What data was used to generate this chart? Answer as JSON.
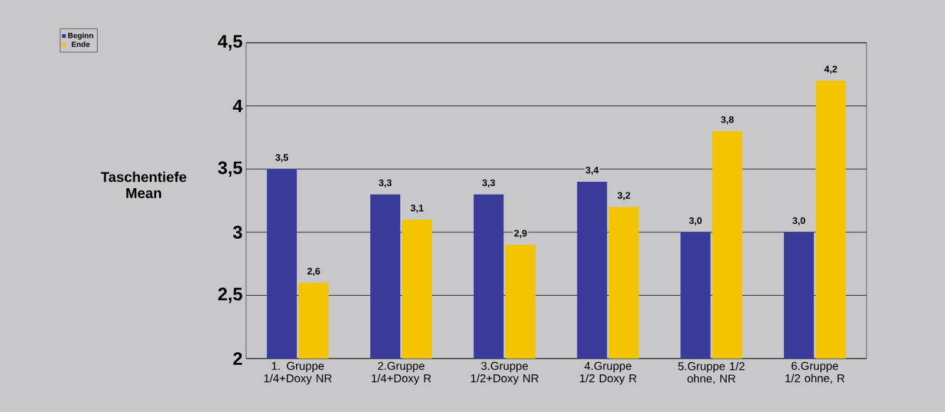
{
  "chart_data": {
    "type": "bar",
    "ylabel": "Taschentiefe Mean",
    "categories": [
      "1. Gruppe 1/4+Doxy NR",
      "2.Gruppe 1/4+Doxy R",
      "3.Gruppe 1/2+Doxy NR",
      "4.Gruppe 1/2 Doxy R",
      "5.Gruppe 1/2 ohne, NR",
      "6.Gruppe 1/2 ohne, R"
    ],
    "series": [
      {
        "name": "Beginn",
        "color": "#3a3a9a",
        "values": [
          3.5,
          3.3,
          3.3,
          3.4,
          3.0,
          3.0
        ],
        "value_labels": [
          "3,5",
          "3,3",
          "3,3",
          "3,4",
          "3,0",
          "3,0"
        ]
      },
      {
        "name": "Ende",
        "color": "#f5c400",
        "values": [
          2.6,
          3.1,
          2.9,
          3.2,
          3.8,
          4.2
        ],
        "value_labels": [
          "2,6",
          "3,1",
          "2,9",
          "3,2",
          "3,8",
          "4,2"
        ]
      }
    ],
    "ylim": [
      2,
      4.5
    ],
    "yticks": [
      2,
      {
        "value": 2.5,
        "label": "2,5"
      },
      3,
      {
        "value": 3.5,
        "label": "3,5"
      },
      4,
      {
        "value": 4.5,
        "label": "4,5"
      }
    ],
    "grid": "y",
    "legend": "top left"
  }
}
